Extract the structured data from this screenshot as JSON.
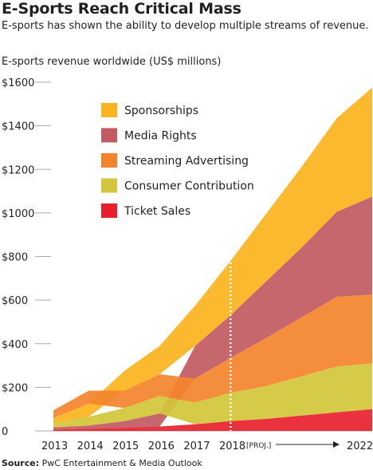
{
  "header": {
    "title": "E-Sports Reach Critical Mass",
    "subtitle": "E-sports has shown the ability to develop multiple streams of revenue."
  },
  "footer": {
    "source_label": "Source:",
    "source_text": "PwC Entertainment & Media Outlook"
  },
  "chart_data": {
    "type": "area",
    "title": "E-Sports Reach Critical Mass",
    "subtitle": "E-sports has shown the ability to develop multiple streams of revenue.",
    "ylabel": "E-sports revenue worldwide (US$ millions)",
    "xlabel": "",
    "ylim": [
      0,
      1600
    ],
    "y_ticks": [
      0,
      200,
      400,
      600,
      800,
      1000,
      1200,
      1400,
      1600
    ],
    "y_tick_labels": [
      "0",
      "$200",
      "$400",
      "$600",
      "$800",
      "$1000",
      "$1200",
      "$1400",
      "$1600"
    ],
    "x": [
      "2013",
      "2014",
      "2015",
      "2016",
      "2017",
      "2018",
      "2019",
      "2020",
      "2021",
      "2022"
    ],
    "x_tick_labels": [
      "2013",
      "2014",
      "2015",
      "2016",
      "2017",
      "2018",
      "2022"
    ],
    "projection_marker": {
      "at": "2018",
      "label": "[PROJ.]"
    },
    "legend_position": "top-left",
    "stacking": "ranked by value each year",
    "series": [
      {
        "name": "Sponsorships",
        "color": "#fbb31e",
        "values": [
          25,
          60,
          90,
          130,
          185,
          250,
          310,
          370,
          430,
          500
        ]
      },
      {
        "name": "Media Rights",
        "color": "#c15a62",
        "values": [
          10,
          15,
          30,
          60,
          150,
          195,
          260,
          320,
          390,
          450
        ]
      },
      {
        "name": "Streaming Advertising",
        "color": "#f3842c",
        "values": [
          35,
          60,
          80,
          100,
          110,
          160,
          220,
          270,
          320,
          315
        ]
      },
      {
        "name": "Consumer Contribution",
        "color": "#d2c73a",
        "values": [
          18,
          40,
          60,
          80,
          100,
          130,
          150,
          180,
          210,
          210
        ]
      },
      {
        "name": "Ticket Sales",
        "color": "#e8202e",
        "values": [
          6,
          10,
          15,
          20,
          30,
          45,
          55,
          70,
          85,
          100
        ]
      }
    ]
  }
}
